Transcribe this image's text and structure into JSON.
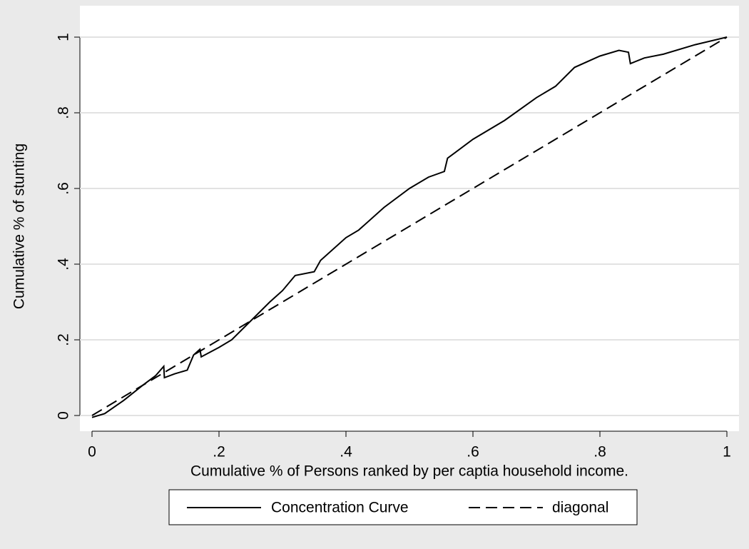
{
  "chart_data": {
    "type": "line",
    "xlabel": "Cumulative % of Persons ranked by per captia household income.",
    "ylabel": "Cumulative % of stunting",
    "xlim": [
      0,
      1
    ],
    "ylim": [
      0,
      1
    ],
    "xticks": [
      0,
      {
        "value": 0.2,
        "label": ".2"
      },
      {
        "value": 0.4,
        "label": ".4"
      },
      {
        "value": 0.6,
        "label": ".6"
      },
      {
        "value": 0.8,
        "label": ".8"
      },
      1
    ],
    "yticks": [
      0,
      {
        "value": 0.2,
        "label": ".2"
      },
      {
        "value": 0.4,
        "label": ".4"
      },
      {
        "value": 0.6,
        "label": ".6"
      },
      {
        "value": 0.8,
        "label": ".8"
      },
      1
    ],
    "grid": true,
    "legend": "bottom",
    "series": [
      {
        "name": "Concentration Curve",
        "color": "#000000",
        "style": "solid",
        "x": [
          0,
          0.02,
          0.05,
          0.08,
          0.1,
          0.113,
          0.114,
          0.13,
          0.15,
          0.16,
          0.17,
          0.172,
          0.2,
          0.22,
          0.25,
          0.28,
          0.3,
          0.32,
          0.35,
          0.36,
          0.4,
          0.42,
          0.46,
          0.5,
          0.53,
          0.555,
          0.56,
          0.6,
          0.65,
          0.7,
          0.73,
          0.76,
          0.8,
          0.83,
          0.845,
          0.848,
          0.87,
          0.9,
          0.95,
          1
        ],
        "values": [
          -0.005,
          0.005,
          0.04,
          0.08,
          0.105,
          0.13,
          0.1,
          0.11,
          0.12,
          0.16,
          0.175,
          0.155,
          0.18,
          0.2,
          0.25,
          0.3,
          0.33,
          0.37,
          0.38,
          0.41,
          0.47,
          0.49,
          0.55,
          0.6,
          0.63,
          0.645,
          0.68,
          0.73,
          0.78,
          0.84,
          0.87,
          0.92,
          0.95,
          0.965,
          0.96,
          0.93,
          0.945,
          0.955,
          0.98,
          1
        ]
      },
      {
        "name": "diagonal",
        "color": "#000000",
        "style": "dashed",
        "x": [
          0,
          1
        ],
        "values": [
          0,
          1
        ]
      }
    ]
  }
}
